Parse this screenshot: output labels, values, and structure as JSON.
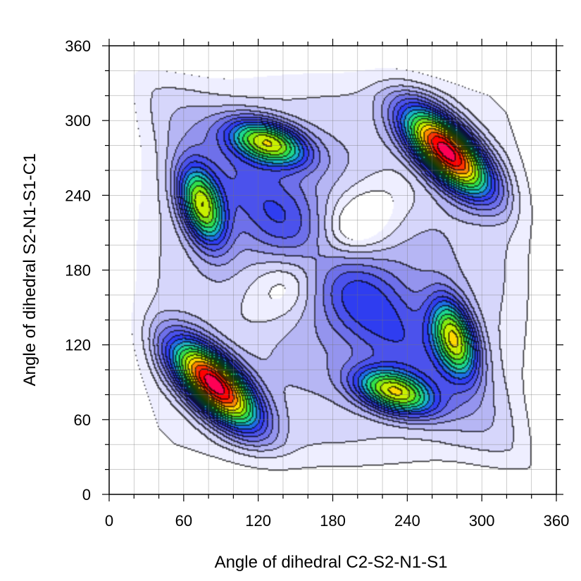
{
  "chart_data": {
    "type": "heatmap",
    "subtype": "2D density contour map",
    "xlabel": "Angle of dihedral C2-S2-N1-S1",
    "ylabel": "Angle of dihedral S2-N1-S1-C1",
    "xlim": [
      0,
      360
    ],
    "ylim": [
      0,
      360
    ],
    "x_ticks": [
      0,
      60,
      120,
      180,
      240,
      300,
      360
    ],
    "y_ticks": [
      0,
      60,
      120,
      180,
      240,
      300,
      360
    ],
    "minor_tick_step": 20,
    "grid": true,
    "colormap": [
      "#ffffff",
      "#eeeeff",
      "#d6d6fb",
      "#b6b6f4",
      "#9494ee",
      "#6e70ea",
      "#4b52ec",
      "#2f3df0",
      "#1f6ee6",
      "#19b4c8",
      "#1ed890",
      "#32e04c",
      "#82ea10",
      "#c8f000",
      "#ffd800",
      "#ff8a00",
      "#ff3300",
      "#ff0000",
      "#ff0055"
    ],
    "contour_line_color": "#000000",
    "peaks": [
      {
        "x": 85,
        "y": 88,
        "height": 1.0,
        "sx": 30,
        "sy": 13,
        "angle": -45
      },
      {
        "x": 272,
        "y": 275,
        "height": 1.0,
        "sx": 30,
        "sy": 13,
        "angle": -45
      },
      {
        "x": 75,
        "y": 232,
        "height": 0.62,
        "sx": 22,
        "sy": 11,
        "angle": -72
      },
      {
        "x": 128,
        "y": 282,
        "height": 0.62,
        "sx": 22,
        "sy": 11,
        "angle": -18
      },
      {
        "x": 278,
        "y": 125,
        "height": 0.62,
        "sx": 22,
        "sy": 11,
        "angle": -72
      },
      {
        "x": 230,
        "y": 82,
        "height": 0.62,
        "sx": 22,
        "sy": 11,
        "angle": -18
      },
      {
        "x": 180,
        "y": 180,
        "height": 0.22,
        "sx": 115,
        "sy": 20,
        "angle": -45
      },
      {
        "x": 180,
        "y": 180,
        "height": 0.16,
        "sx": 95,
        "sy": 95,
        "angle": 0
      }
    ],
    "center_dip": {
      "x": 175,
      "y": 195,
      "depth": 0.24,
      "sx": 50,
      "sy": 22,
      "angle": 40
    }
  }
}
